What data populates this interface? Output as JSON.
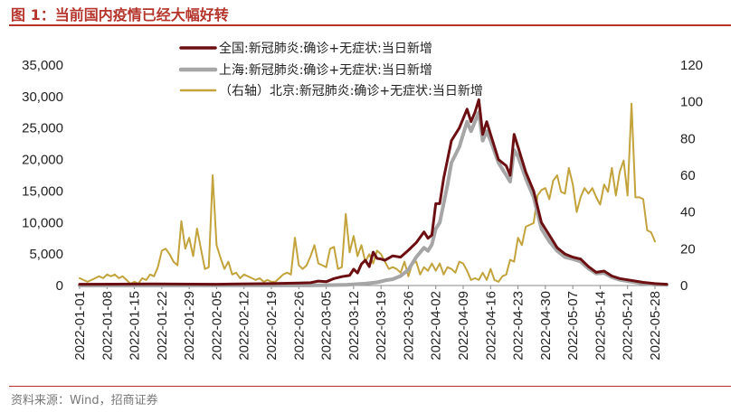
{
  "title": "图 1：当前国内疫情已经大幅好转",
  "source": "资料来源：Wind，招商证券",
  "chart_data": {
    "type": "line",
    "colors": {
      "national": "#6b0f12",
      "shanghai": "#a6a6a6",
      "beijing": "#c2a33c",
      "title": "#b5352c"
    },
    "ylim_left": [
      0,
      35000
    ],
    "yticks_left": [
      "0",
      "5,000",
      "10,000",
      "15,000",
      "20,000",
      "25,000",
      "30,000",
      "35,000"
    ],
    "ylim_right": [
      0,
      120
    ],
    "yticks_right": [
      "0",
      "20",
      "40",
      "60",
      "80",
      "100",
      "120"
    ],
    "xticks": [
      "2022-01-01",
      "2022-01-08",
      "2022-01-15",
      "2022-01-22",
      "2022-01-29",
      "2022-02-05",
      "2022-02-12",
      "2022-02-19",
      "2022-02-26",
      "2022-03-05",
      "2022-03-12",
      "2022-03-19",
      "2022-03-26",
      "2022-04-02",
      "2022-04-09",
      "2022-04-16",
      "2022-04-23",
      "2022-04-30",
      "2022-05-07",
      "2022-05-14",
      "2022-05-21",
      "2022-05-28"
    ],
    "legend": "top-center",
    "series": [
      {
        "name": "全国:新冠肺炎:确诊+无症状:当日新增",
        "axis": "left",
        "points": [
          [
            "2022-01-01",
            200
          ],
          [
            "2022-01-20",
            250
          ],
          [
            "2022-02-05",
            200
          ],
          [
            "2022-02-19",
            300
          ],
          [
            "2022-02-26",
            400
          ],
          [
            "2022-03-01",
            450
          ],
          [
            "2022-03-03",
            700
          ],
          [
            "2022-03-05",
            600
          ],
          [
            "2022-03-07",
            1100
          ],
          [
            "2022-03-09",
            1400
          ],
          [
            "2022-03-11",
            1600
          ],
          [
            "2022-03-12",
            2600
          ],
          [
            "2022-03-13",
            2000
          ],
          [
            "2022-03-14",
            3400
          ],
          [
            "2022-03-15",
            4000
          ],
          [
            "2022-03-16",
            3000
          ],
          [
            "2022-03-17",
            5300
          ],
          [
            "2022-03-18",
            4300
          ],
          [
            "2022-03-19",
            4200
          ],
          [
            "2022-03-20",
            4000
          ],
          [
            "2022-03-22",
            4700
          ],
          [
            "2022-03-24",
            4500
          ],
          [
            "2022-03-26",
            5600
          ],
          [
            "2022-03-28",
            6800
          ],
          [
            "2022-03-30",
            8500
          ],
          [
            "2022-03-31",
            7500
          ],
          [
            "2022-04-01",
            8000
          ],
          [
            "2022-04-02",
            13000
          ],
          [
            "2022-04-03",
            13000
          ],
          [
            "2022-04-04",
            17000
          ],
          [
            "2022-04-05",
            20000
          ],
          [
            "2022-04-06",
            23000
          ],
          [
            "2022-04-08",
            25000
          ],
          [
            "2022-04-10",
            28000
          ],
          [
            "2022-04-11",
            26000
          ],
          [
            "2022-04-12",
            27500
          ],
          [
            "2022-04-13",
            29500
          ],
          [
            "2022-04-14",
            24000
          ],
          [
            "2022-04-15",
            26000
          ],
          [
            "2022-04-16",
            24000
          ],
          [
            "2022-04-18",
            20000
          ],
          [
            "2022-04-20",
            19000
          ],
          [
            "2022-04-21",
            17500
          ],
          [
            "2022-04-22",
            24000
          ],
          [
            "2022-04-23",
            22000
          ],
          [
            "2022-04-25",
            18000
          ],
          [
            "2022-04-27",
            15000
          ],
          [
            "2022-04-29",
            10000
          ],
          [
            "2022-05-01",
            8000
          ],
          [
            "2022-05-03",
            6000
          ],
          [
            "2022-05-05",
            5000
          ],
          [
            "2022-05-07",
            4500
          ],
          [
            "2022-05-09",
            4200
          ],
          [
            "2022-05-11",
            3000
          ],
          [
            "2022-05-13",
            2100
          ],
          [
            "2022-05-15",
            2300
          ],
          [
            "2022-05-17",
            1500
          ],
          [
            "2022-05-19",
            1100
          ],
          [
            "2022-05-21",
            900
          ],
          [
            "2022-05-23",
            700
          ],
          [
            "2022-05-25",
            500
          ],
          [
            "2022-05-28",
            300
          ],
          [
            "2022-05-31",
            200
          ]
        ]
      },
      {
        "name": "上海:新冠肺炎:确诊+无症状:当日新增",
        "axis": "left",
        "points": [
          [
            "2022-01-01",
            0
          ],
          [
            "2022-03-01",
            20
          ],
          [
            "2022-03-10",
            100
          ],
          [
            "2022-03-15",
            300
          ],
          [
            "2022-03-18",
            500
          ],
          [
            "2022-03-20",
            800
          ],
          [
            "2022-03-22",
            1000
          ],
          [
            "2022-03-24",
            1500
          ],
          [
            "2022-03-26",
            2500
          ],
          [
            "2022-03-28",
            4500
          ],
          [
            "2022-03-30",
            6000
          ],
          [
            "2022-03-31",
            5500
          ],
          [
            "2022-04-01",
            6500
          ],
          [
            "2022-04-02",
            9000
          ],
          [
            "2022-04-03",
            10000
          ],
          [
            "2022-04-04",
            13000
          ],
          [
            "2022-04-05",
            16000
          ],
          [
            "2022-04-06",
            19500
          ],
          [
            "2022-04-08",
            22000
          ],
          [
            "2022-04-10",
            26000
          ],
          [
            "2022-04-11",
            24500
          ],
          [
            "2022-04-12",
            26000
          ],
          [
            "2022-04-13",
            27500
          ],
          [
            "2022-04-14",
            23000
          ],
          [
            "2022-04-15",
            24500
          ],
          [
            "2022-04-16",
            23000
          ],
          [
            "2022-04-18",
            19500
          ],
          [
            "2022-04-20",
            17500
          ],
          [
            "2022-04-21",
            16500
          ],
          [
            "2022-04-22",
            21500
          ],
          [
            "2022-04-23",
            20500
          ],
          [
            "2022-04-25",
            17000
          ],
          [
            "2022-04-27",
            14000
          ],
          [
            "2022-04-29",
            9000
          ],
          [
            "2022-05-01",
            7000
          ],
          [
            "2022-05-03",
            5500
          ],
          [
            "2022-05-05",
            4500
          ],
          [
            "2022-05-07",
            4200
          ],
          [
            "2022-05-09",
            3800
          ],
          [
            "2022-05-11",
            2700
          ],
          [
            "2022-05-13",
            1900
          ],
          [
            "2022-05-15",
            2000
          ],
          [
            "2022-05-17",
            1300
          ],
          [
            "2022-05-19",
            900
          ],
          [
            "2022-05-21",
            700
          ],
          [
            "2022-05-23",
            500
          ],
          [
            "2022-05-25",
            300
          ],
          [
            "2022-05-28",
            150
          ],
          [
            "2022-05-31",
            100
          ]
        ]
      },
      {
        "name": "（右轴）北京:新冠肺炎:确诊+无症状:当日新增",
        "axis": "right",
        "points": [
          [
            "2022-01-01",
            4
          ],
          [
            "2022-01-03",
            2
          ],
          [
            "2022-01-05",
            4
          ],
          [
            "2022-01-06",
            5
          ],
          [
            "2022-01-07",
            4
          ],
          [
            "2022-01-08",
            6
          ],
          [
            "2022-01-09",
            5
          ],
          [
            "2022-01-10",
            6
          ],
          [
            "2022-01-11",
            4
          ],
          [
            "2022-01-12",
            5
          ],
          [
            "2022-01-13",
            3
          ],
          [
            "2022-01-14",
            1
          ],
          [
            "2022-01-15",
            2
          ],
          [
            "2022-01-16",
            1
          ],
          [
            "2022-01-17",
            4
          ],
          [
            "2022-01-18",
            3
          ],
          [
            "2022-01-19",
            6
          ],
          [
            "2022-01-20",
            5
          ],
          [
            "2022-01-21",
            10
          ],
          [
            "2022-01-22",
            19
          ],
          [
            "2022-01-23",
            20
          ],
          [
            "2022-01-24",
            17
          ],
          [
            "2022-01-25",
            13
          ],
          [
            "2022-01-26",
            11
          ],
          [
            "2022-01-27",
            35
          ],
          [
            "2022-01-28",
            20
          ],
          [
            "2022-01-29",
            26
          ],
          [
            "2022-01-30",
            16
          ],
          [
            "2022-01-31",
            31
          ],
          [
            "2022-02-01",
            20
          ],
          [
            "2022-02-02",
            9
          ],
          [
            "2022-02-03",
            10
          ],
          [
            "2022-02-04",
            60
          ],
          [
            "2022-02-05",
            22
          ],
          [
            "2022-02-06",
            15
          ],
          [
            "2022-02-07",
            9
          ],
          [
            "2022-02-08",
            13
          ],
          [
            "2022-02-09",
            6
          ],
          [
            "2022-02-10",
            7
          ],
          [
            "2022-02-11",
            4
          ],
          [
            "2022-02-12",
            6
          ],
          [
            "2022-02-13",
            5
          ],
          [
            "2022-02-14",
            4
          ],
          [
            "2022-02-15",
            3
          ],
          [
            "2022-02-16",
            4
          ],
          [
            "2022-02-17",
            2
          ],
          [
            "2022-02-18",
            3
          ],
          [
            "2022-02-19",
            2
          ],
          [
            "2022-02-20",
            2
          ],
          [
            "2022-02-21",
            4
          ],
          [
            "2022-02-22",
            6
          ],
          [
            "2022-02-23",
            7
          ],
          [
            "2022-02-24",
            6
          ],
          [
            "2022-02-25",
            26
          ],
          [
            "2022-02-26",
            11
          ],
          [
            "2022-02-27",
            9
          ],
          [
            "2022-02-28",
            11
          ],
          [
            "2022-03-01",
            16
          ],
          [
            "2022-03-02",
            22
          ],
          [
            "2022-03-03",
            12
          ],
          [
            "2022-03-04",
            11
          ],
          [
            "2022-03-05",
            10
          ],
          [
            "2022-03-06",
            20
          ],
          [
            "2022-03-07",
            21
          ],
          [
            "2022-03-08",
            9
          ],
          [
            "2022-03-09",
            10
          ],
          [
            "2022-03-10",
            39
          ],
          [
            "2022-03-11",
            18
          ],
          [
            "2022-03-12",
            27
          ],
          [
            "2022-03-13",
            16
          ],
          [
            "2022-03-14",
            22
          ],
          [
            "2022-03-15",
            13
          ],
          [
            "2022-03-16",
            17
          ],
          [
            "2022-03-17",
            12
          ],
          [
            "2022-03-18",
            19
          ],
          [
            "2022-03-19",
            17
          ],
          [
            "2022-03-20",
            13
          ],
          [
            "2022-03-21",
            9
          ],
          [
            "2022-03-22",
            10
          ],
          [
            "2022-03-23",
            9
          ],
          [
            "2022-03-24",
            7
          ],
          [
            "2022-03-25",
            13
          ],
          [
            "2022-03-26",
            5
          ],
          [
            "2022-03-27",
            12
          ],
          [
            "2022-03-28",
            13
          ],
          [
            "2022-03-29",
            6
          ],
          [
            "2022-03-30",
            10
          ],
          [
            "2022-03-31",
            8
          ],
          [
            "2022-04-01",
            12
          ],
          [
            "2022-04-02",
            8
          ],
          [
            "2022-04-03",
            12
          ],
          [
            "2022-04-04",
            6
          ],
          [
            "2022-04-05",
            10
          ],
          [
            "2022-04-06",
            9
          ],
          [
            "2022-04-07",
            7
          ],
          [
            "2022-04-08",
            13
          ],
          [
            "2022-04-09",
            12
          ],
          [
            "2022-04-10",
            8
          ],
          [
            "2022-04-11",
            3
          ],
          [
            "2022-04-12",
            4
          ],
          [
            "2022-04-13",
            3
          ],
          [
            "2022-04-14",
            7
          ],
          [
            "2022-04-15",
            3
          ],
          [
            "2022-04-16",
            9
          ],
          [
            "2022-04-17",
            3
          ],
          [
            "2022-04-18",
            2
          ],
          [
            "2022-04-19",
            5
          ],
          [
            "2022-04-20",
            6
          ],
          [
            "2022-04-21",
            14
          ],
          [
            "2022-04-22",
            13
          ],
          [
            "2022-04-23",
            26
          ],
          [
            "2022-04-24",
            22
          ],
          [
            "2022-04-25",
            32
          ],
          [
            "2022-04-26",
            33
          ],
          [
            "2022-04-27",
            34
          ],
          [
            "2022-04-28",
            49
          ],
          [
            "2022-04-29",
            52
          ],
          [
            "2022-04-30",
            53
          ],
          [
            "2022-05-01",
            47
          ],
          [
            "2022-05-02",
            57
          ],
          [
            "2022-05-03",
            60
          ],
          [
            "2022-05-04",
            51
          ],
          [
            "2022-05-05",
            50
          ],
          [
            "2022-05-06",
            64
          ],
          [
            "2022-05-07",
            55
          ],
          [
            "2022-05-08",
            40
          ],
          [
            "2022-05-09",
            48
          ],
          [
            "2022-05-10",
            53
          ],
          [
            "2022-05-11",
            50
          ],
          [
            "2022-05-12",
            53
          ],
          [
            "2022-05-13",
            48
          ],
          [
            "2022-05-14",
            44
          ],
          [
            "2022-05-15",
            55
          ],
          [
            "2022-05-16",
            51
          ],
          [
            "2022-05-17",
            64
          ],
          [
            "2022-05-18",
            49
          ],
          [
            "2022-05-19",
            62
          ],
          [
            "2022-05-20",
            68
          ],
          [
            "2022-05-21",
            49
          ],
          [
            "2022-05-22",
            99
          ],
          [
            "2022-05-23",
            48
          ],
          [
            "2022-05-24",
            48
          ],
          [
            "2022-05-25",
            47
          ],
          [
            "2022-05-26",
            30
          ],
          [
            "2022-05-27",
            29
          ],
          [
            "2022-05-28",
            24
          ]
        ]
      }
    ]
  }
}
